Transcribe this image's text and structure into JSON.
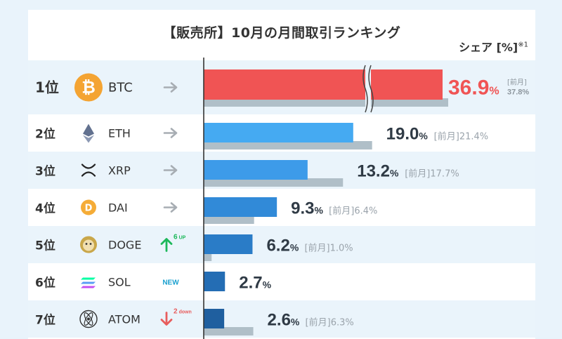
{
  "title": "【販売所】10月の月間取引ランキング",
  "share_header": "シェア [%]",
  "share_note": "※1",
  "prev_label": "[前月]",
  "colors": {
    "highlight": "#f05454",
    "prev_bar": "#b0bfc8",
    "row_alt": "#eaf4fb",
    "up": "#1cb85a",
    "down": "#e85d5d",
    "new": "#1aa0cf"
  },
  "chart_data": {
    "type": "bar",
    "orientation": "horizontal",
    "title": "【販売所】10月の月間取引ランキング",
    "value_axis_label": "シェア [%]",
    "axis_break": true,
    "categories": [
      "BTC",
      "ETH",
      "XRP",
      "DAI",
      "DOGE",
      "SOL",
      "ATOM"
    ],
    "series": [
      {
        "name": "",
        "values": [
          36.9,
          19.0,
          13.2,
          9.3,
          6.2,
          2.7,
          2.6
        ]
      },
      {
        "name": "[前月]",
        "values": [
          37.8,
          21.4,
          17.7,
          6.4,
          1.0,
          null,
          6.3
        ]
      }
    ],
    "rows": [
      {
        "rank": "1位",
        "ticker": "BTC",
        "icon": "bitcoin-icon",
        "change": "same",
        "change_label": "",
        "value": 36.9,
        "value_text": "36.9",
        "prev": 37.8,
        "prev_text": "37.8%",
        "highlight": true,
        "bar_color": "#f05454"
      },
      {
        "rank": "2位",
        "ticker": "ETH",
        "icon": "ethereum-icon",
        "change": "same",
        "change_label": "",
        "value": 19.0,
        "value_text": "19.0",
        "prev": 21.4,
        "prev_text": "21.4%",
        "highlight": false,
        "bar_color": "#45aaf2"
      },
      {
        "rank": "3位",
        "ticker": "XRP",
        "icon": "xrp-icon",
        "change": "same",
        "change_label": "",
        "value": 13.2,
        "value_text": "13.2",
        "prev": 17.7,
        "prev_text": "17.7%",
        "highlight": false,
        "bar_color": "#3d9be9"
      },
      {
        "rank": "4位",
        "ticker": "DAI",
        "icon": "dai-icon",
        "change": "same",
        "change_label": "",
        "value": 9.3,
        "value_text": "9.3",
        "prev": 6.4,
        "prev_text": "6.4%",
        "highlight": false,
        "bar_color": "#318ad8"
      },
      {
        "rank": "5位",
        "ticker": "DOGE",
        "icon": "dogecoin-icon",
        "change": "up",
        "change_label": "6 UP",
        "value": 6.2,
        "value_text": "6.2",
        "prev": 1.0,
        "prev_text": "1.0%",
        "highlight": false,
        "bar_color": "#2a7cc7"
      },
      {
        "rank": "6位",
        "ticker": "SOL",
        "icon": "solana-icon",
        "change": "new",
        "change_label": "NEW",
        "value": 2.7,
        "value_text": "2.7",
        "prev": null,
        "prev_text": "",
        "highlight": false,
        "bar_color": "#246db4"
      },
      {
        "rank": "7位",
        "ticker": "ATOM",
        "icon": "cosmos-atom-icon",
        "change": "down",
        "change_label": "2 down",
        "value": 2.6,
        "value_text": "2.6",
        "prev": 6.3,
        "prev_text": "6.3%",
        "highlight": false,
        "bar_color": "#1f5f9f"
      }
    ]
  }
}
